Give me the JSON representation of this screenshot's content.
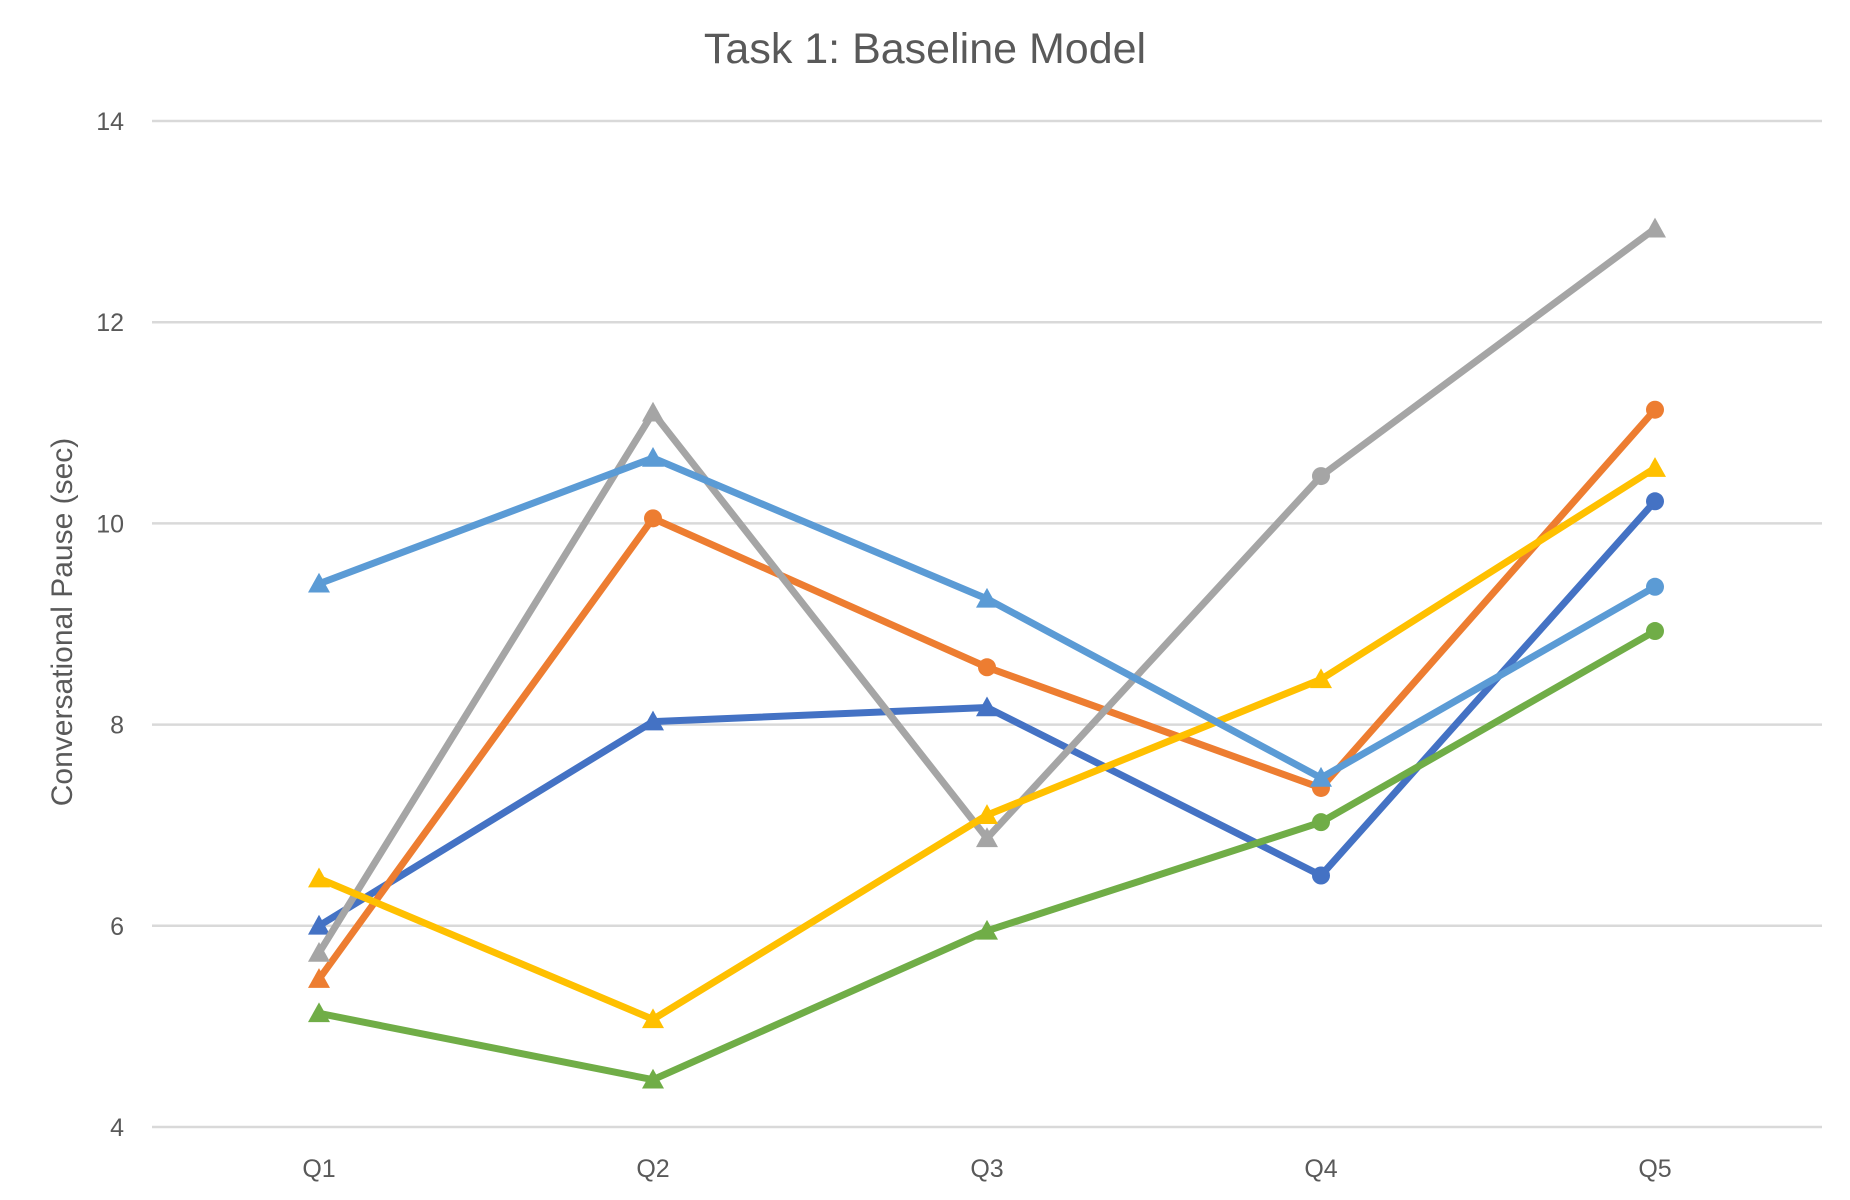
{
  "chart_data": {
    "type": "line",
    "title": "Task 1: Baseline Model",
    "xlabel": "",
    "ylabel": "Conversational Pause (sec)",
    "categories": [
      "Q1",
      "Q2",
      "Q3",
      "Q4",
      "Q5"
    ],
    "ylim": [
      4,
      14
    ],
    "yticks": [
      4,
      6,
      8,
      10,
      12,
      14
    ],
    "grid": true,
    "legend": "none",
    "series": [
      {
        "color": "#4472C4",
        "values": [
          6.0,
          8.03,
          8.17,
          6.5,
          10.22
        ],
        "markers": [
          "triangle",
          "triangle",
          "triangle",
          "circle",
          "circle"
        ]
      },
      {
        "color": "#ED7D31",
        "values": [
          5.47,
          10.05,
          8.57,
          7.37,
          11.13
        ],
        "markers": [
          "triangle",
          "circle",
          "circle",
          "circle",
          "circle"
        ]
      },
      {
        "color": "#A5A5A5",
        "values": [
          5.73,
          11.1,
          6.87,
          10.47,
          12.93
        ],
        "markers": [
          "triangle",
          "triangle",
          "triangle",
          "circle",
          "triangle"
        ]
      },
      {
        "color": "#FFC000",
        "values": [
          6.47,
          5.07,
          7.1,
          8.45,
          10.55
        ],
        "markers": [
          "triangle",
          "triangle",
          "triangle",
          "triangle",
          "triangle"
        ]
      },
      {
        "color": "#5B9BD5",
        "values": [
          9.4,
          10.65,
          9.25,
          7.47,
          9.37
        ],
        "markers": [
          "triangle",
          "triangle",
          "triangle",
          "triangle",
          "circle"
        ]
      },
      {
        "color": "#70AD47",
        "values": [
          5.13,
          4.47,
          5.95,
          7.03,
          8.93
        ],
        "markers": [
          "triangle",
          "triangle",
          "triangle",
          "circle",
          "circle"
        ]
      }
    ]
  }
}
